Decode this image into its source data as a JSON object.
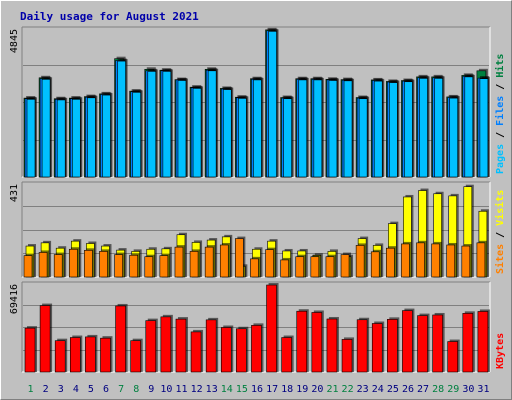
{
  "title": "Daily usage for August 2021",
  "colors": {
    "title": "#0000aa",
    "hits": "#008040",
    "files": "#0080ff",
    "pages": "#00c0ff",
    "visits": "#ffff00",
    "sites": "#ff8000",
    "kbytes": "#ff0000",
    "weekend_label": "#008040",
    "weekday_label": "#000080",
    "panel_bg": "#c0c0c0",
    "grid": "#808080"
  },
  "chart_data": [
    {
      "type": "bar",
      "panel": "hits-files-pages",
      "ymax_label": "4845",
      "ylim": [
        0,
        4845
      ],
      "legend": {
        "labels": [
          "Pages",
          "Files",
          "Hits"
        ],
        "separator": " / ",
        "placement": "right"
      },
      "categories": [
        "1",
        "2",
        "3",
        "4",
        "5",
        "6",
        "7",
        "8",
        "9",
        "10",
        "11",
        "12",
        "13",
        "14",
        "15",
        "16",
        "17",
        "18",
        "19",
        "20",
        "21",
        "22",
        "23",
        "24",
        "25",
        "26",
        "27",
        "28",
        "29",
        "30",
        "31"
      ],
      "series": [
        {
          "name": "Hits",
          "values": [
            2600,
            3270,
            2580,
            2600,
            2650,
            2740,
            3900,
            2830,
            3550,
            3520,
            3210,
            2960,
            3550,
            2920,
            2630,
            3240,
            4850,
            2620,
            3240,
            3240,
            3220,
            3210,
            2620,
            3200,
            3150,
            3180,
            3300,
            3300,
            2640,
            3350,
            3500
          ]
        },
        {
          "name": "Files",
          "values": [
            2580,
            3240,
            2560,
            2580,
            2630,
            2720,
            3840,
            2810,
            3500,
            3500,
            3200,
            2940,
            3520,
            2900,
            2610,
            3220,
            4820,
            2600,
            3220,
            3220,
            3200,
            3190,
            2600,
            3180,
            3130,
            3160,
            3270,
            3270,
            2620,
            3320,
            3260
          ]
        },
        {
          "name": "Pages",
          "values": [
            2560,
            3220,
            2540,
            2560,
            2610,
            2700,
            3820,
            2790,
            3480,
            3480,
            3180,
            2920,
            3500,
            2880,
            2590,
            3200,
            4800,
            2580,
            3200,
            3200,
            3180,
            3170,
            2580,
            3160,
            3110,
            3140,
            3250,
            3250,
            2600,
            3300,
            3240
          ]
        }
      ]
    },
    {
      "type": "bar",
      "panel": "visits-sites",
      "ymax_label": "431",
      "ylim": [
        0,
        431
      ],
      "legend": {
        "labels": [
          "Sites",
          "Visits"
        ],
        "separator": " / ",
        "placement": "right"
      },
      "categories": [
        "1",
        "2",
        "3",
        "4",
        "5",
        "6",
        "7",
        "8",
        "9",
        "10",
        "11",
        "12",
        "13",
        "14",
        "15",
        "16",
        "17",
        "18",
        "19",
        "20",
        "21",
        "22",
        "23",
        "24",
        "25",
        "26",
        "27",
        "28",
        "29",
        "30",
        "31"
      ],
      "series": [
        {
          "name": "Visits",
          "values": [
            145,
            160,
            135,
            168,
            157,
            145,
            126,
            120,
            130,
            132,
            198,
            162,
            173,
            188,
            50,
            130,
            168,
            122,
            122,
            102,
            120,
            95,
            180,
            148,
            250,
            375,
            405,
            390,
            380,
            423,
            308
          ]
        },
        {
          "name": "Sites",
          "values": [
            100,
            115,
            105,
            130,
            125,
            120,
            105,
            102,
            95,
            100,
            140,
            120,
            140,
            150,
            180,
            85,
            128,
            80,
            95,
            95,
            95,
            105,
            148,
            118,
            135,
            155,
            160,
            155,
            150,
            145,
            160
          ]
        }
      ]
    },
    {
      "type": "bar",
      "panel": "kbytes",
      "ymax_label": "69416",
      "ylim": [
        0,
        69416
      ],
      "legend": {
        "labels": [
          "KBytes"
        ],
        "separator": "",
        "placement": "right"
      },
      "categories": [
        "1",
        "2",
        "3",
        "4",
        "5",
        "6",
        "7",
        "8",
        "9",
        "10",
        "11",
        "12",
        "13",
        "14",
        "15",
        "16",
        "17",
        "18",
        "19",
        "20",
        "21",
        "22",
        "23",
        "24",
        "25",
        "26",
        "27",
        "28",
        "29",
        "30",
        "31"
      ],
      "series": [
        {
          "name": "KBytes",
          "values": [
            35000,
            53000,
            25000,
            27500,
            28000,
            27000,
            52700,
            25000,
            41000,
            44000,
            42200,
            32000,
            41600,
            35500,
            34500,
            37200,
            69400,
            27500,
            48500,
            47500,
            42300,
            26000,
            41700,
            38700,
            42000,
            49000,
            45000,
            45500,
            24300,
            46800,
            48300
          ]
        }
      ]
    }
  ]
}
